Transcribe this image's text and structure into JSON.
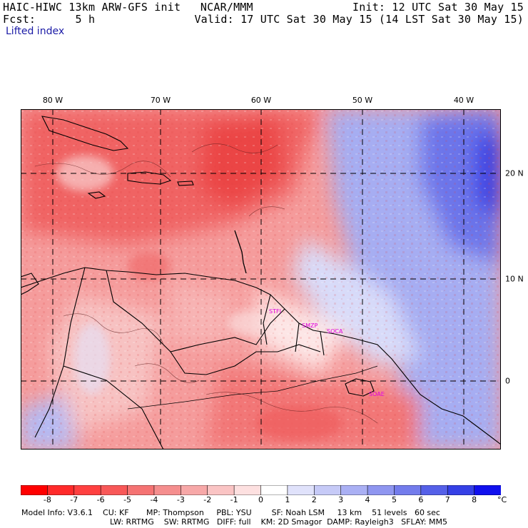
{
  "header": {
    "model_line": "HAIC-HIWC 13km ARW-GFS init   NCAR/MMM",
    "forecast_line": "Fcst:      5 h",
    "init_line": "Init: 12 UTC Sat 30 May 15",
    "valid_line": "Valid: 17 UTC Sat 30 May 15 (14 LST Sat 30 May 15)",
    "field": "Lifted index"
  },
  "map": {
    "longitude_labels": [
      "80 W",
      "70 W",
      "60 W",
      "50 W",
      "40 W"
    ],
    "latitude_labels": [
      "20 N",
      "10 N",
      "0"
    ],
    "stations": [
      "STFI",
      "SMZP",
      "SOCA",
      "SOAE"
    ],
    "colors": {
      "strong_negative": "#ff1a1a",
      "moderate_negative": "#f25a5a",
      "weak_negative": "#f5a0a0",
      "near_zero": "#ffffff",
      "weak_positive": "#c8ccf5",
      "moderate_positive": "#8f96f0",
      "strong_positive": "#1010ee",
      "contour": "#000000",
      "grid": "#000000",
      "station_label": "#e000e0"
    }
  },
  "colorbar": {
    "labels": [
      "-8",
      "-7",
      "-6",
      "-5",
      "-4",
      "-3",
      "-2",
      "-1",
      "0",
      "1",
      "2",
      "3",
      "4",
      "5",
      "6",
      "7",
      "8"
    ],
    "unit": "°C",
    "colors": [
      "#ff0000",
      "#ff2a2a",
      "#ff4040",
      "#f85858",
      "#f57373",
      "#f58e8e",
      "#f7a8a8",
      "#fac4c4",
      "#fde0e0",
      "#ffffff",
      "#e0e2fb",
      "#c6caf7",
      "#aab0f4",
      "#8f96f0",
      "#737cec",
      "#5560e8",
      "#3540e6",
      "#1010ee"
    ]
  },
  "model_info": {
    "line1": "Model Info: V3.6.1    CU: KF       MP: Thompson     PBL: YSU        SF: Noah LSM     13 km    51 levels   60 sec",
    "line2": "LW: RRTMG    SW: RRTMG   DIFF: full    KM: 2D Smagor  DAMP: Rayleigh3   SFLAY: MM5"
  }
}
